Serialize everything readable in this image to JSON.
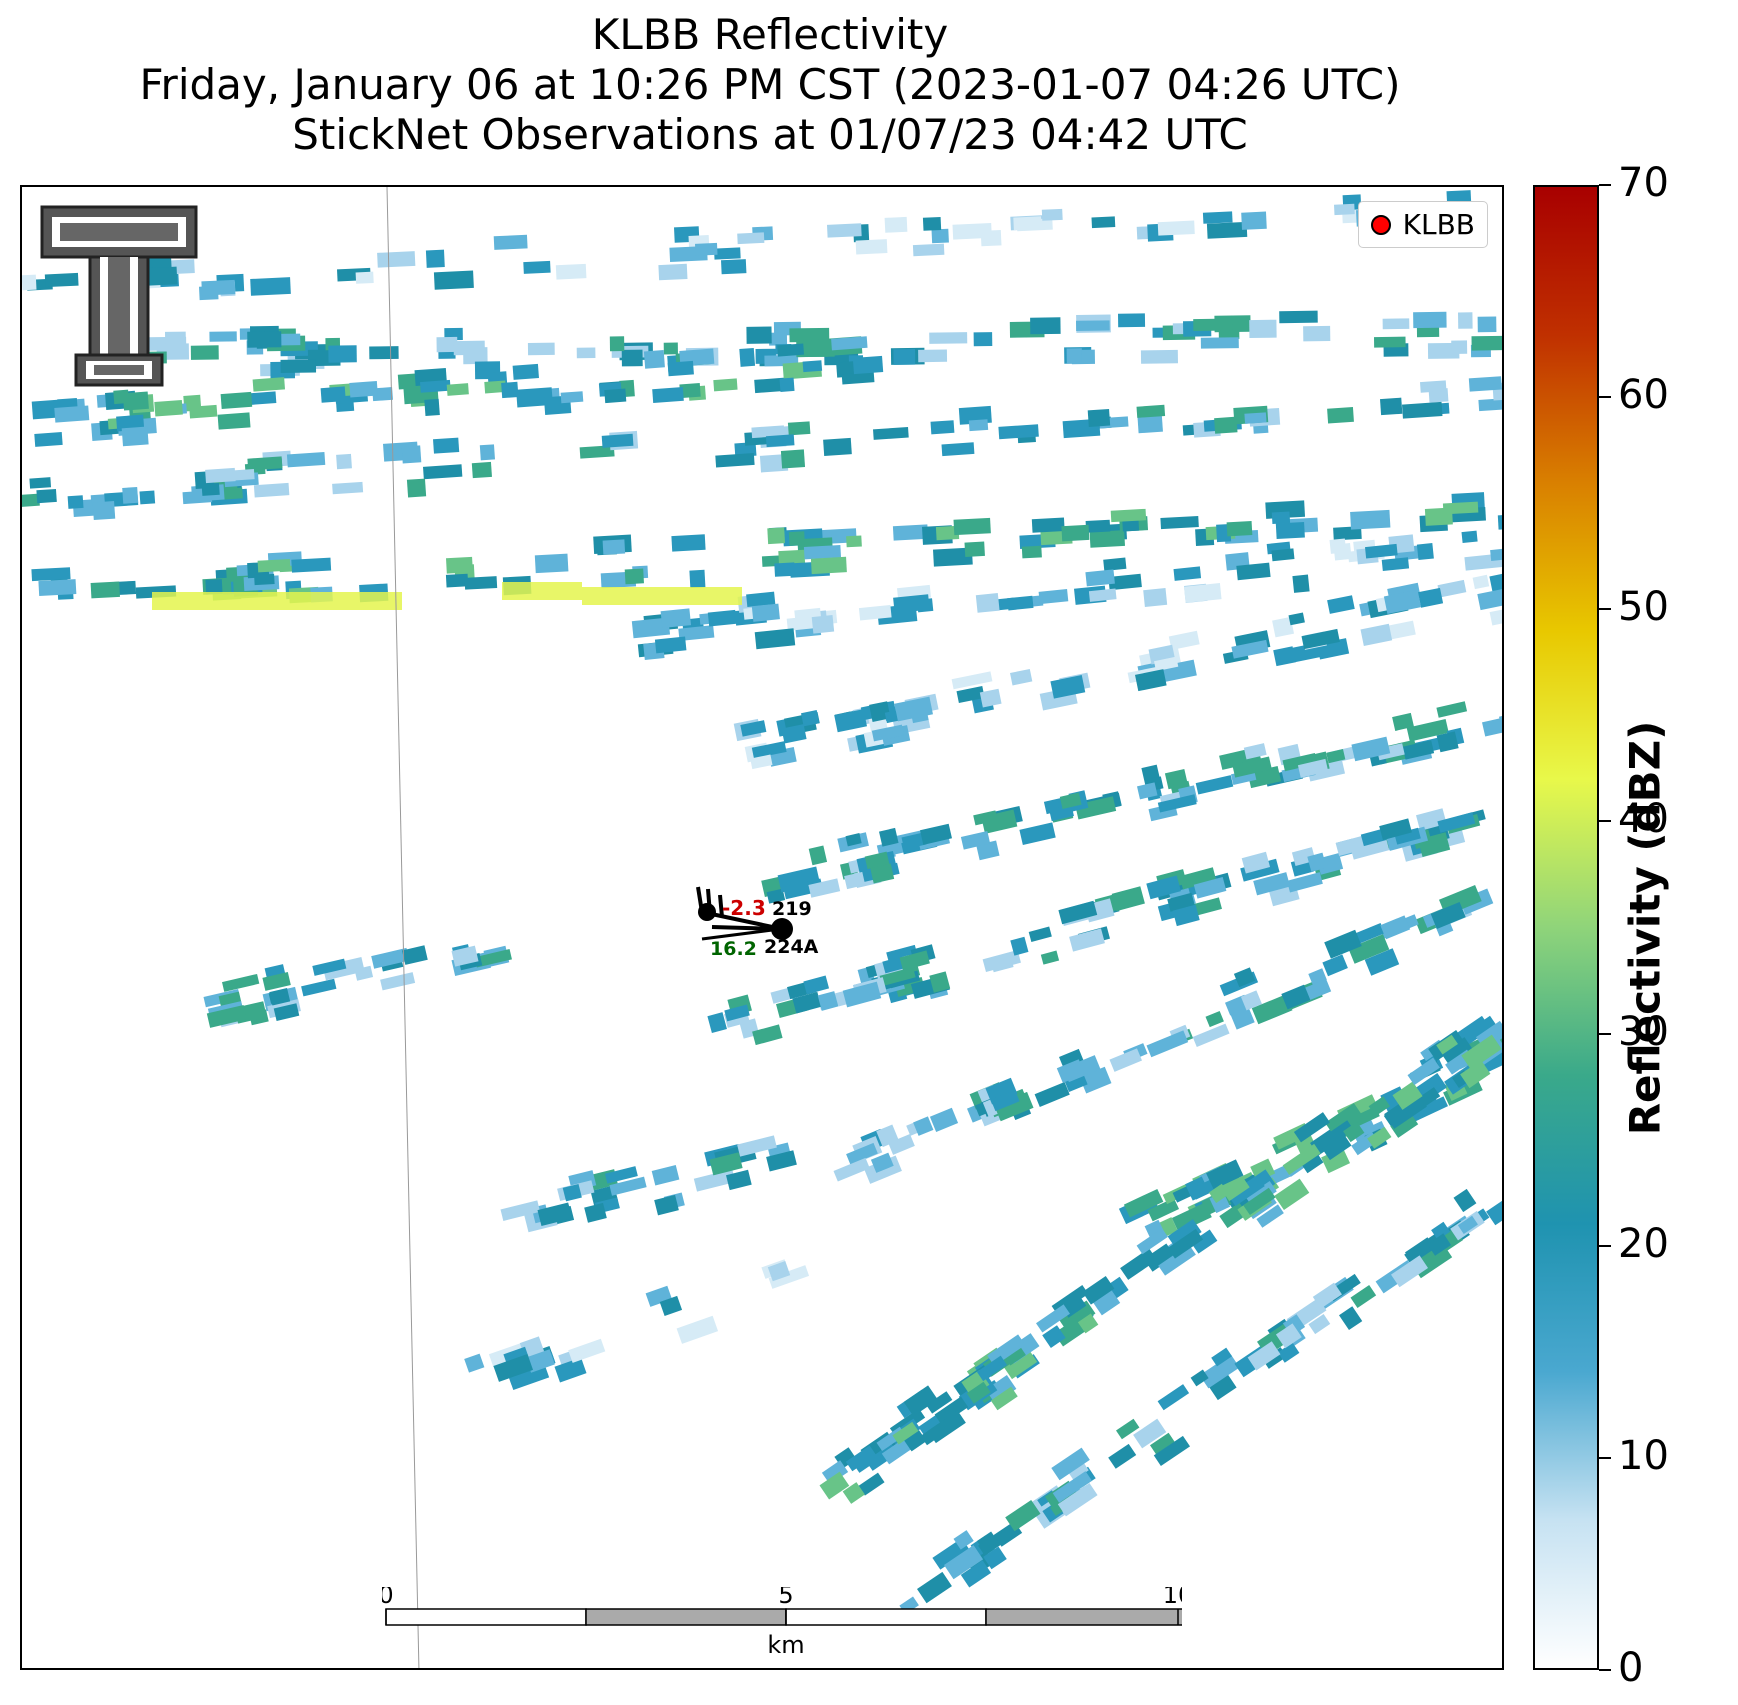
{
  "title": {
    "line1": "KLBB Reflectivity",
    "line2": "Friday, January 06 at 10:26 PM CST (2023-01-07 04:26 UTC)",
    "line3": "StickNet Observations at 01/07/23 04:42 UTC"
  },
  "legend": {
    "label": "KLBB",
    "marker_color": "#ff0000"
  },
  "stations": [
    {
      "id": "219",
      "temperature": "-2.3",
      "temperature_color": "#cc0000"
    },
    {
      "id": "224A",
      "dewpoint": "16.2",
      "dewpoint_color": "#006400"
    }
  ],
  "scalebar": {
    "unit": "km",
    "ticks": [
      "0",
      "5",
      "10"
    ]
  },
  "colorbar": {
    "label": "Reflectivity (dBZ)",
    "min": 0,
    "max": 70,
    "ticks": [
      "0",
      "10",
      "20",
      "30",
      "40",
      "50",
      "60",
      "70"
    ],
    "colors": [
      "#ffffff",
      "#c6e2f2",
      "#4aa8d0",
      "#1f93b0",
      "#3aa98a",
      "#8fd47a",
      "#e8f84a",
      "#e8c800",
      "#d98000",
      "#c03000",
      "#a80000"
    ]
  }
}
